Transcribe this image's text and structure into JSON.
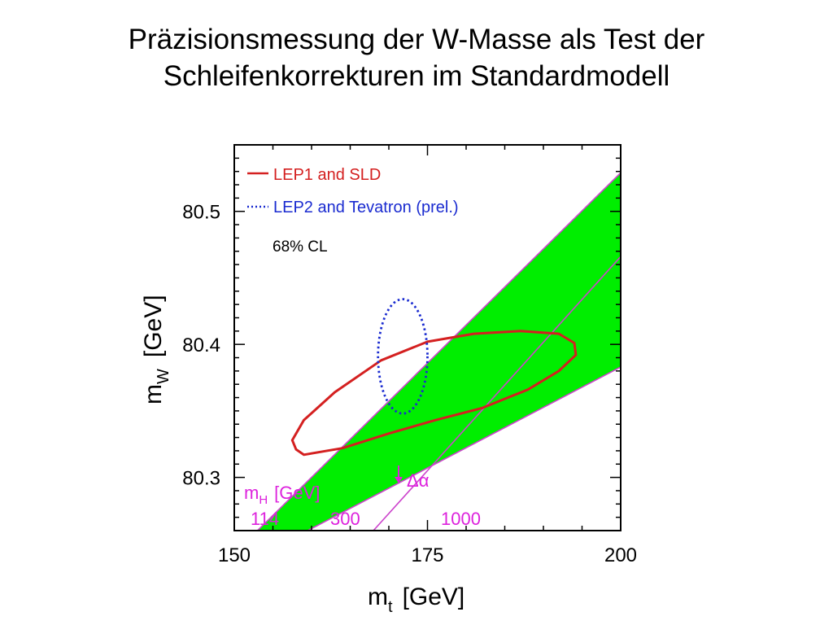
{
  "slide": {
    "title_line1": "Präzisionsmessung der W-Masse als Test der",
    "title_line2": "Schleifenkorrekturen im Standardmodell"
  },
  "chart_data": {
    "type": "area",
    "xlabel_main": "m",
    "xlabel_sub": "t",
    "xlabel_unit": "[GeV]",
    "ylabel_main": "m",
    "ylabel_sub": "W",
    "ylabel_unit": "[GeV]",
    "xlim": [
      150,
      200
    ],
    "ylim": [
      80.26,
      80.55
    ],
    "xticks": [
      150,
      175,
      200
    ],
    "xtick_labels": [
      "150",
      "175",
      "200"
    ],
    "yticks": [
      80.3,
      80.4,
      80.5
    ],
    "ytick_labels": [
      "80.3",
      "80.4",
      "80.5"
    ],
    "legend": {
      "placement": "top-left",
      "items": [
        {
          "label": "LEP1 and SLD",
          "style": "solid",
          "color": "#d42020"
        },
        {
          "label": "LEP2 and Tevatron (prel.)",
          "style": "dotted",
          "color": "#1a2bd0"
        }
      ],
      "cl_label": "68% CL"
    },
    "band": {
      "color": "#00ee00",
      "edge_color": "#cc44cc",
      "lower_edge": [
        [
          159.5,
          80.26
        ],
        [
          200,
          80.383
        ]
      ],
      "upper_edge": [
        [
          153.0,
          80.26
        ],
        [
          200,
          80.529
        ]
      ],
      "inner_line": [
        [
          168.0,
          80.26
        ],
        [
          200,
          80.466
        ]
      ]
    },
    "higgs_label": {
      "main": "m",
      "sub": "H",
      "unit": "[GeV]",
      "color": "#dd22dd"
    },
    "higgs_masses": [
      "114",
      "300",
      "1000"
    ],
    "delta_alpha_label": "Δα",
    "series": [
      {
        "name": "LEP1 and SLD",
        "style": "solid",
        "color": "#d42020",
        "points": [
          [
            158.0,
            80.321
          ],
          [
            159.0,
            80.317
          ],
          [
            164.0,
            80.322
          ],
          [
            170.0,
            80.333
          ],
          [
            176.0,
            80.343
          ],
          [
            182.0,
            80.352
          ],
          [
            188.0,
            80.366
          ],
          [
            192.0,
            80.38
          ],
          [
            194.2,
            80.392
          ],
          [
            194.0,
            80.401
          ],
          [
            192.0,
            80.408
          ],
          [
            187.0,
            80.41
          ],
          [
            181.0,
            80.408
          ],
          [
            175.0,
            80.402
          ],
          [
            169.0,
            80.388
          ],
          [
            163.0,
            80.364
          ],
          [
            159.0,
            80.343
          ],
          [
            157.5,
            80.328
          ],
          [
            158.0,
            80.321
          ]
        ]
      },
      {
        "name": "LEP2 and Tevatron (prel.)",
        "style": "dotted",
        "color": "#1a2bd0",
        "center": [
          171.8,
          80.391
        ],
        "half_width": 3.2,
        "half_height": 0.043
      }
    ]
  }
}
